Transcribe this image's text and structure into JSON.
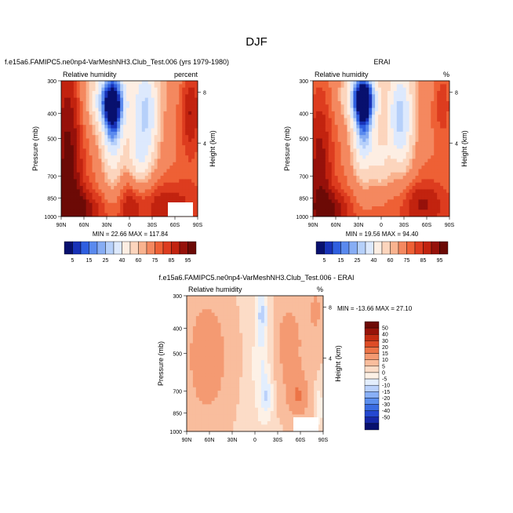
{
  "figure": {
    "title": "DJF"
  },
  "colors": {
    "rh_scale": [
      "#08106e",
      "#1832b8",
      "#2f5fe0",
      "#5a8aee",
      "#87adf4",
      "#b6d0fa",
      "#dde9fd",
      "#fdeee3",
      "#fcd5bd",
      "#f9b38f",
      "#f4885f",
      "#ee6035",
      "#dd3c1f",
      "#c2230f",
      "#96110a",
      "#6c0a06"
    ],
    "diff_scale": [
      "#08106e",
      "#1628a8",
      "#2448d0",
      "#3a6ce2",
      "#5b8eee",
      "#89b0f6",
      "#bad1fb",
      "#e3eefd",
      "#fdf1e6",
      "#fcdcc7",
      "#f9bd9d",
      "#f49a72",
      "#ec7447",
      "#dd4c26",
      "#c32c12",
      "#97140a",
      "#6e0a06"
    ]
  },
  "chart_data": [
    {
      "type": "heatmap",
      "title": "f.e15a6.FAMIPC5.ne0np4-VarMeshNH3.Club_Test.006 (yrs 1979-1980)",
      "subtitle_left": "Relative humidity",
      "subtitle_right": "percent",
      "xlabel": "",
      "ylabel": "Pressure (mb)",
      "ylabel_right": "Height (km)",
      "x_ticks": [
        "90N",
        "60N",
        "30N",
        "0",
        "30S",
        "60S",
        "90S"
      ],
      "y_ticks": [
        "300",
        "400",
        "500",
        "700",
        "850",
        "1000"
      ],
      "y_ticks_right": [
        "8",
        "4"
      ],
      "stats": "MIN = 22.66  MAX = 117.84",
      "colorbar_labels": [
        "5",
        "15",
        "25",
        "40",
        "60",
        "75",
        "85",
        "95"
      ]
    },
    {
      "type": "heatmap",
      "title": "ERAI",
      "subtitle_left": "Relative humidity",
      "subtitle_right": "%",
      "xlabel": "",
      "ylabel": "Pressure (mb)",
      "ylabel_right": "Height (km)",
      "x_ticks": [
        "90N",
        "60N",
        "30N",
        "0",
        "30S",
        "60S",
        "90S"
      ],
      "y_ticks": [
        "300",
        "400",
        "500",
        "700",
        "850",
        "1000"
      ],
      "y_ticks_right": [
        "8",
        "4"
      ],
      "stats": "MIN = 19.56  MAX = 94.40",
      "colorbar_labels": [
        "5",
        "15",
        "25",
        "40",
        "60",
        "75",
        "85",
        "95"
      ]
    },
    {
      "type": "heatmap",
      "title": "f.e15a6.FAMIPC5.ne0np4-VarMeshNH3.Club_Test.006 - ERAI",
      "subtitle_left": "Relative humidity",
      "subtitle_right": "%",
      "xlabel": "",
      "ylabel": "Pressure (mb)",
      "ylabel_right": "Height (km)",
      "x_ticks": [
        "90N",
        "60N",
        "30N",
        "0",
        "30S",
        "60S",
        "90S"
      ],
      "y_ticks": [
        "300",
        "400",
        "500",
        "700",
        "850",
        "1000"
      ],
      "y_ticks_right": [
        "8",
        "4"
      ],
      "stats": "MIN = -13.66  MAX = 27.10",
      "colorbar_labels": [
        "50",
        "40",
        "30",
        "20",
        "15",
        "10",
        "5",
        "0",
        "-5",
        "-10",
        "-15",
        "-20",
        "-30",
        "-40",
        "-50"
      ]
    }
  ]
}
